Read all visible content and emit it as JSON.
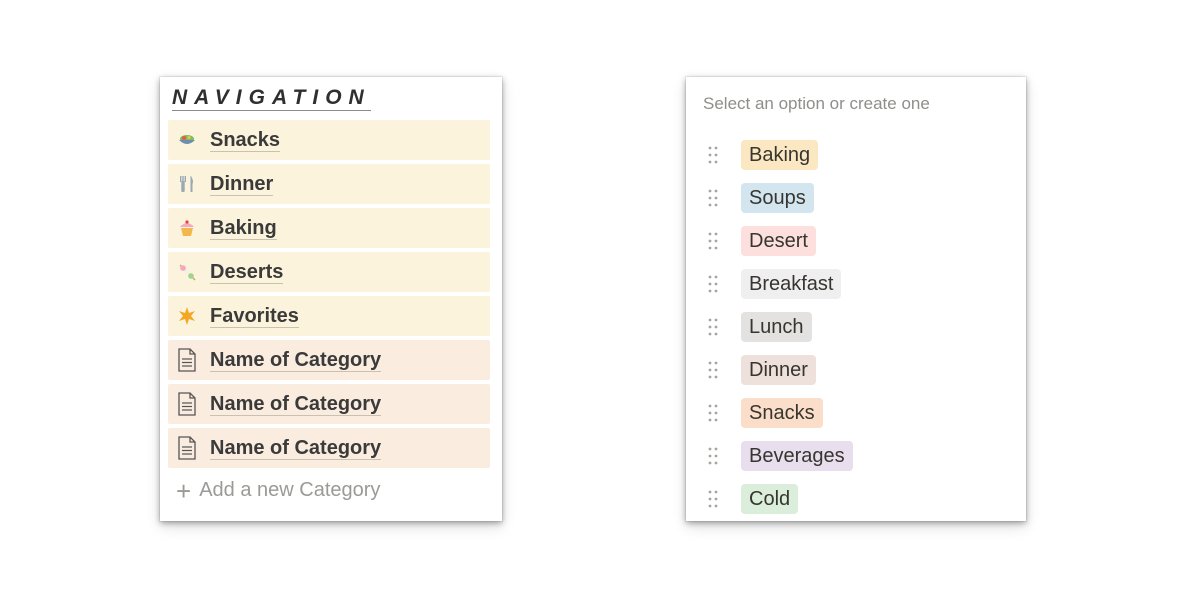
{
  "navigation": {
    "title": "NAVIGATION",
    "items": [
      {
        "label": "Snacks",
        "icon": "salad-bowl-icon",
        "bg": "#fbf3dc"
      },
      {
        "label": "Dinner",
        "icon": "fork-knife-icon",
        "bg": "#fbf3dc"
      },
      {
        "label": "Baking",
        "icon": "cupcake-icon",
        "bg": "#fbf3dc"
      },
      {
        "label": "Deserts",
        "icon": "dango-icon",
        "bg": "#fbf3dc"
      },
      {
        "label": "Favorites",
        "icon": "star-burst-icon",
        "bg": "#fbf3dc"
      },
      {
        "label": "Name of Category",
        "icon": "document-icon",
        "bg": "#fbece0"
      },
      {
        "label": "Name of Category",
        "icon": "document-icon",
        "bg": "#fbece0"
      },
      {
        "label": "Name of Category",
        "icon": "document-icon",
        "bg": "#fbece0"
      }
    ],
    "add_label": "Add a new Category"
  },
  "select": {
    "hint": "Select an option or create one",
    "options": [
      {
        "label": "Baking",
        "color": "#fbe8c2"
      },
      {
        "label": "Soups",
        "color": "#d3e5ef"
      },
      {
        "label": "Desert",
        "color": "#fde0dd"
      },
      {
        "label": "Breakfast",
        "color": "#efefef"
      },
      {
        "label": "Lunch",
        "color": "#e3e2e0"
      },
      {
        "label": "Dinner",
        "color": "#eee0da"
      },
      {
        "label": "Snacks",
        "color": "#fadec9"
      },
      {
        "label": "Beverages",
        "color": "#e8deee"
      },
      {
        "label": "Cold",
        "color": "#dbeddb"
      }
    ]
  }
}
